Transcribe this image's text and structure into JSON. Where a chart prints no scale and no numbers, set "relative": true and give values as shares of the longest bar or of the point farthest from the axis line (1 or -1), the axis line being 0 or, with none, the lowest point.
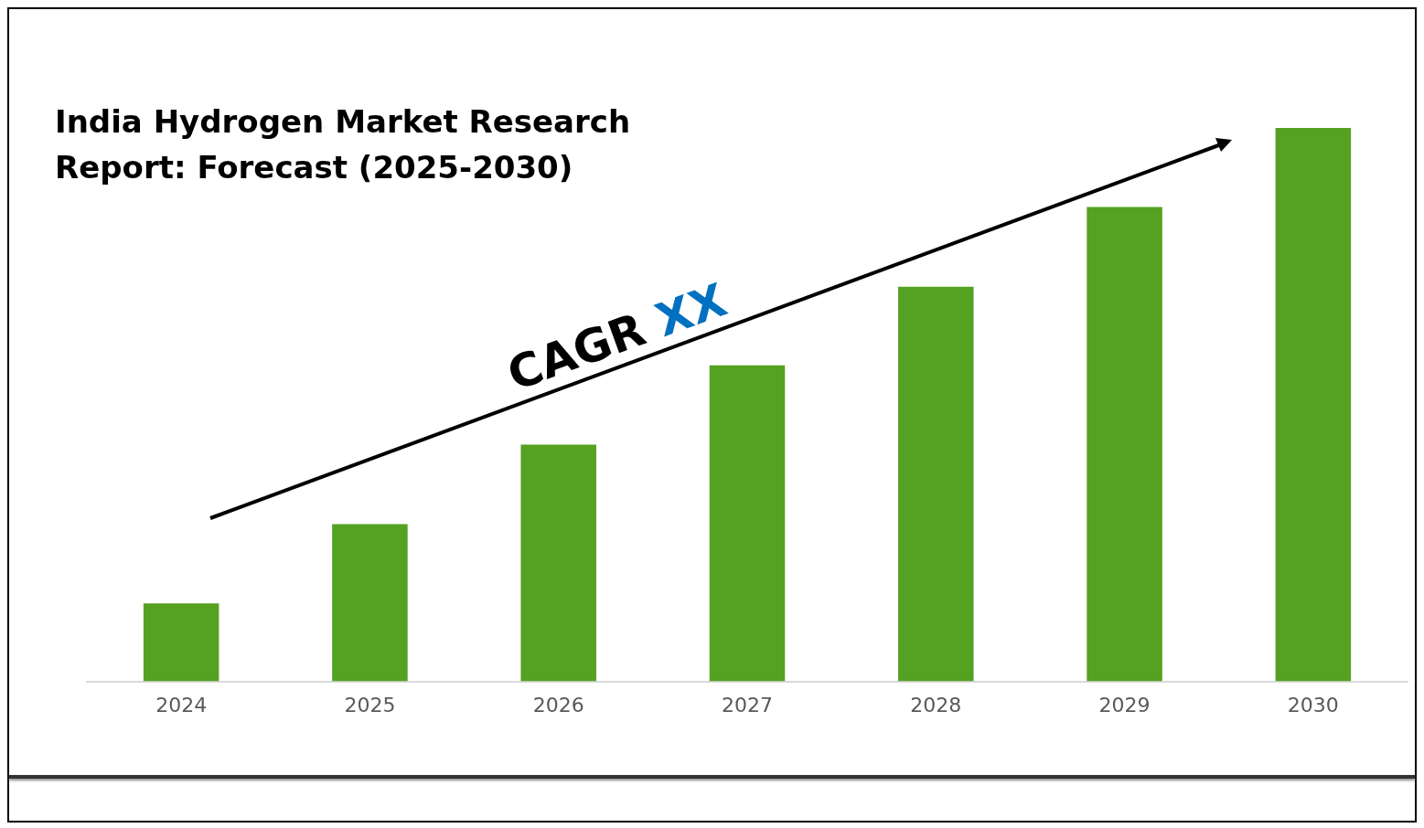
{
  "chart_data": {
    "type": "bar",
    "title": "India Hydrogen Market Research Report: Forecast (2025-2030)",
    "categories": [
      "2024",
      "2025",
      "2026",
      "2027",
      "2028",
      "2029",
      "2030"
    ],
    "values": [
      0.141,
      0.284,
      0.428,
      0.571,
      0.713,
      0.857,
      1
    ],
    "color": "#55a121",
    "relative": true,
    "grid": false,
    "legend": false,
    "annotations": [
      "CAGR XX"
    ]
  }
}
